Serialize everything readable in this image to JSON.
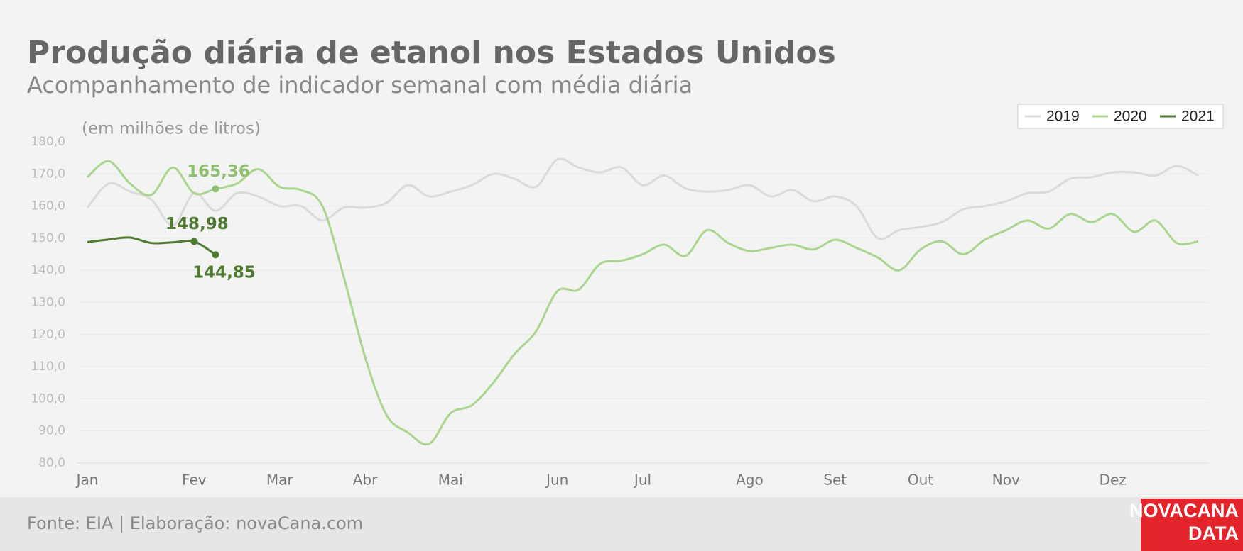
{
  "chart_data": {
    "type": "line",
    "title": "Produção diária de etanol nos Estados Unidos",
    "subtitle": "Acompanhamento de indicador semanal com média diária",
    "y_axis_label": "(em milhões de litros)",
    "categories": [
      "Jan",
      null,
      null,
      null,
      null,
      "Fev",
      null,
      null,
      null,
      "Mar",
      null,
      null,
      null,
      "Abr",
      null,
      null,
      null,
      "Mai",
      null,
      null,
      null,
      null,
      "Jun",
      null,
      null,
      null,
      "Jul",
      null,
      null,
      null,
      null,
      "Ago",
      null,
      null,
      null,
      "Set",
      null,
      null,
      null,
      "Out",
      null,
      null,
      null,
      "Nov",
      null,
      null,
      null,
      null,
      "Dez",
      null,
      null,
      null,
      null
    ],
    "ylim": [
      80,
      180
    ],
    "yticks": [
      {
        "value": 80,
        "label": "80,0"
      },
      {
        "value": 90,
        "label": "90,0"
      },
      {
        "value": 100,
        "label": "100,0"
      },
      {
        "value": 110,
        "label": "110,0"
      },
      {
        "value": 120,
        "label": "120,0"
      },
      {
        "value": 130,
        "label": "130,0"
      },
      {
        "value": 140,
        "label": "140,0"
      },
      {
        "value": 150,
        "label": "150,0"
      },
      {
        "value": 160,
        "label": "160,0"
      },
      {
        "value": 170,
        "label": "170,0"
      },
      {
        "value": 180,
        "label": "180,0"
      }
    ],
    "grid": true,
    "legend": "top-right",
    "series": [
      {
        "name": "2019",
        "color": "#dadada",
        "values": [
          159.5,
          167,
          164.5,
          162,
          154,
          164,
          158.5,
          164,
          163,
          160,
          160,
          155.5,
          159.5,
          159.5,
          161,
          166.5,
          163,
          164.5,
          166.5,
          170,
          168.5,
          166,
          174.5,
          172,
          170.5,
          172,
          166.5,
          169.5,
          165.5,
          164.5,
          165,
          166.5,
          163,
          165,
          161.5,
          163,
          160,
          150,
          152.5,
          153.5,
          155,
          159,
          160,
          161.5,
          164,
          164.5,
          168.5,
          169,
          170.5,
          170.5,
          169.5,
          172.5,
          169.5
        ]
      },
      {
        "name": "2020",
        "color": "#a9d58e",
        "values": [
          169,
          174,
          167,
          163.5,
          172,
          164,
          165.36,
          167,
          171.5,
          166,
          165,
          160,
          138,
          113,
          95,
          89.5,
          86,
          95.5,
          98,
          105,
          114,
          121,
          133.5,
          134,
          142,
          143,
          145,
          148,
          144.5,
          152.5,
          148.5,
          146,
          147,
          148,
          146.5,
          149.5,
          147,
          144,
          140,
          146.5,
          149,
          145,
          149.5,
          152.5,
          155.5,
          153,
          157.5,
          155,
          157.5,
          152,
          155.5,
          148.5,
          149
        ],
        "value_labels": [
          null,
          null,
          null,
          null,
          null,
          null,
          "165,36",
          null,
          null,
          null,
          null,
          null,
          null,
          null,
          null,
          null,
          null,
          null,
          null,
          null,
          null,
          null,
          null,
          null,
          null,
          null,
          null,
          null,
          null,
          null,
          null,
          null,
          null,
          null,
          null,
          null,
          null,
          null,
          null,
          null,
          null,
          null,
          null,
          null,
          null,
          null,
          null,
          null,
          null,
          null,
          null,
          null,
          null
        ],
        "label_color": "#8fbf6e"
      },
      {
        "name": "2021",
        "color": "#4e7a32",
        "values": [
          148.8,
          149.6,
          150.2,
          148.5,
          148.7,
          148.98,
          144.85,
          null,
          null,
          null,
          null,
          null,
          null,
          null,
          null,
          null,
          null,
          null,
          null,
          null,
          null,
          null,
          null,
          null,
          null,
          null,
          null,
          null,
          null,
          null,
          null,
          null,
          null,
          null,
          null,
          null,
          null,
          null,
          null,
          null,
          null,
          null,
          null,
          null,
          null,
          null,
          null,
          null,
          null,
          null,
          null,
          null,
          null
        ],
        "value_labels": [
          null,
          null,
          null,
          null,
          null,
          "148,98",
          "144,85",
          null,
          null,
          null,
          null,
          null,
          null,
          null,
          null,
          null,
          null,
          null,
          null,
          null,
          null,
          null,
          null,
          null,
          null,
          null,
          null,
          null,
          null,
          null,
          null,
          null,
          null,
          null,
          null,
          null,
          null,
          null,
          null,
          null,
          null,
          null,
          null,
          null,
          null,
          null,
          null,
          null,
          null,
          null,
          null,
          null,
          null
        ],
        "label_color": "#4e7a32"
      }
    ]
  },
  "source": "Fonte: EIA | Elaboração: novaCana.com",
  "logo": [
    "NOVACANA",
    "DATA"
  ]
}
